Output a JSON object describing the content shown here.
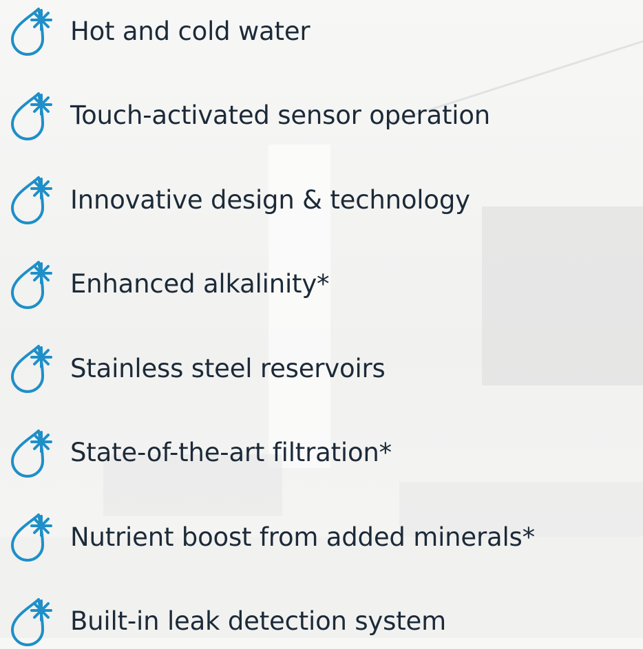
{
  "features": [
    "Hot and cold water",
    "Touch-activated sensor operation",
    "Innovative design & technology",
    "Enhanced alkalinity*",
    "Stainless steel reservoirs",
    "State-of-the-art filtration*",
    "Nutrient boost from added minerals*",
    "Built-in leak detection system"
  ]
}
